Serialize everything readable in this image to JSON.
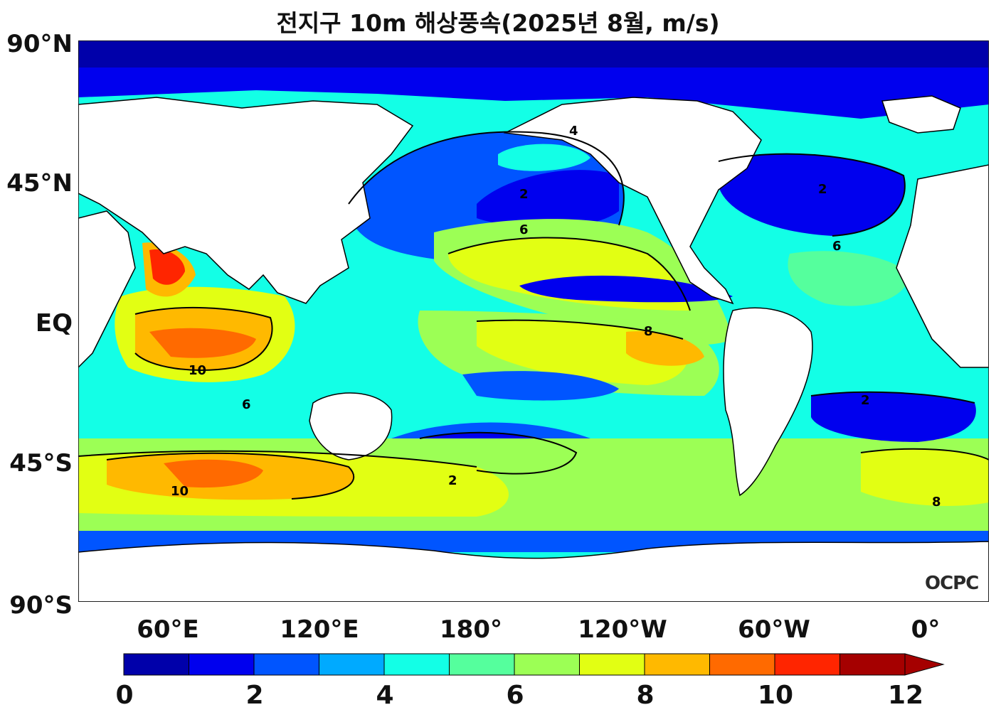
{
  "title": "전지구 10m 해상풍속(2025년 8월, m/s)",
  "lat_labels": [
    "90°N",
    "45°N",
    "EQ",
    "45°S",
    "90°S"
  ],
  "lon_labels": [
    "60°E",
    "120°E",
    "180°",
    "120°W",
    "60°W",
    "0°"
  ],
  "colorbar": {
    "ticks": [
      "0",
      "2",
      "4",
      "6",
      "8",
      "10",
      "12"
    ],
    "colors": [
      "#0000aa",
      "#0000ee",
      "#0055ff",
      "#00aaff",
      "#13ffe6",
      "#55ff9d",
      "#9cff55",
      "#e2ff13",
      "#ffb900",
      "#ff6a00",
      "#ff2500",
      "#a50000"
    ],
    "extend": "max",
    "levels": [
      0,
      1,
      2,
      3,
      4,
      5,
      6,
      7,
      8,
      9,
      10,
      11,
      12
    ]
  },
  "logo": "OCPC",
  "map": {
    "projection": "equirectangular",
    "lon_range": [
      25,
      385
    ],
    "lat_range": [
      -90,
      90
    ],
    "contour_labels": [
      "2",
      "4",
      "6",
      "8",
      "10"
    ]
  }
}
